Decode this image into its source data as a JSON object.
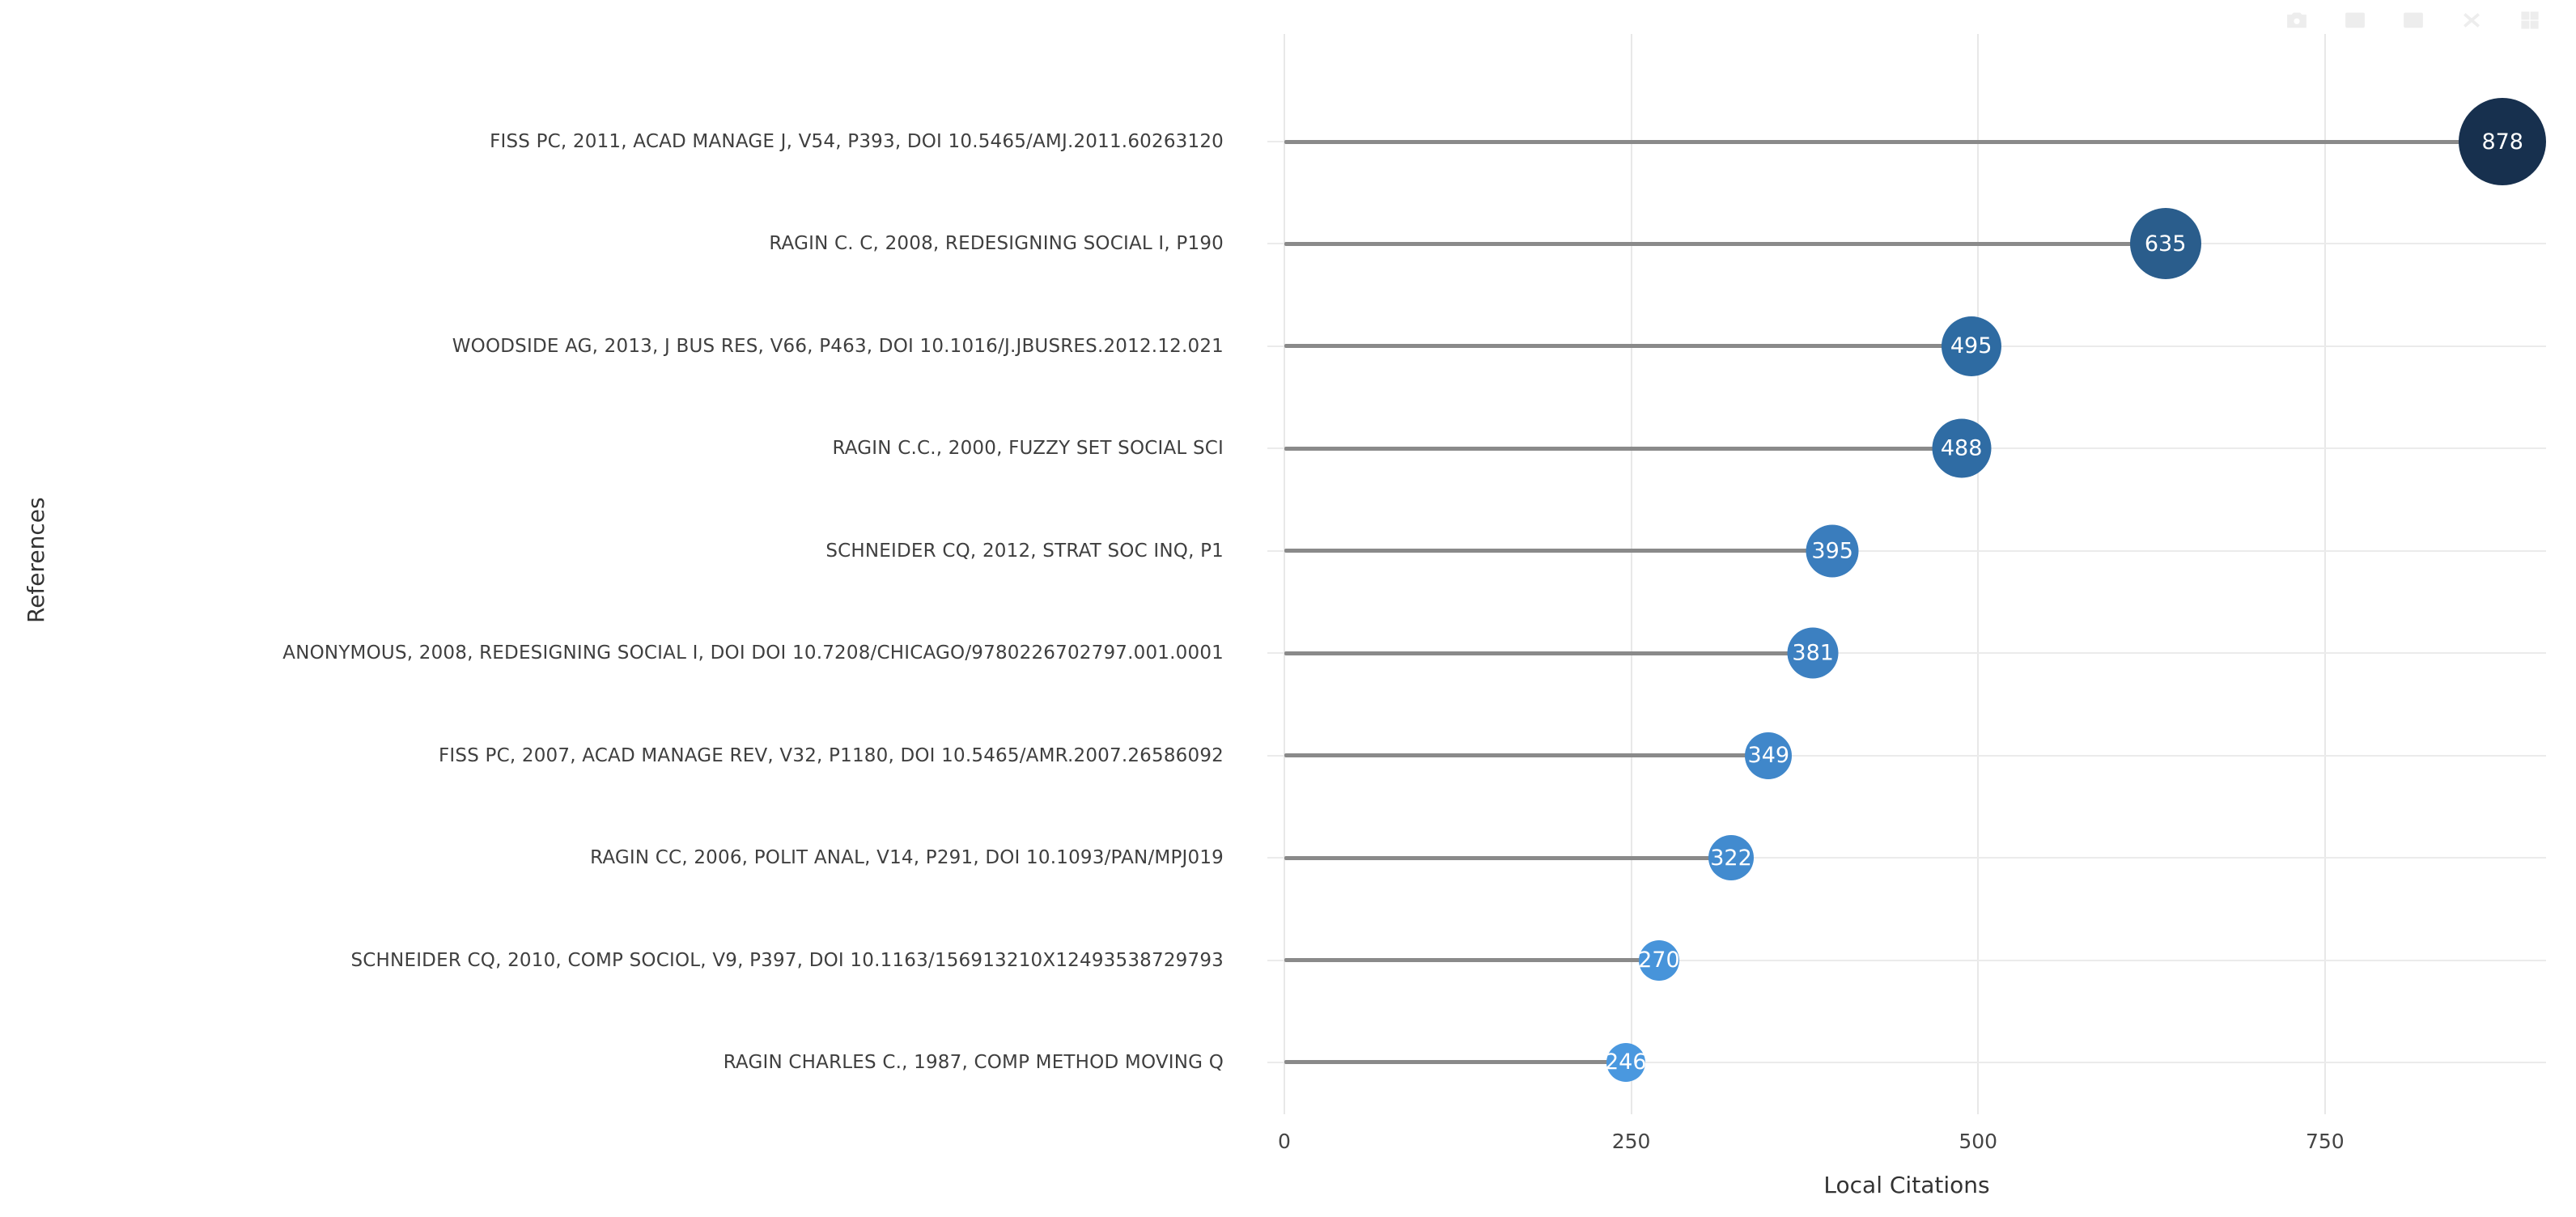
{
  "chart_data": {
    "type": "lollipop",
    "orientation": "horizontal",
    "xlabel": "Local Citations",
    "ylabel": "References",
    "x_ticks": [
      "0",
      "250",
      "500",
      "750"
    ],
    "x_tick_values": [
      0,
      250,
      500,
      750
    ],
    "xlim": [
      0,
      910
    ],
    "grid": true,
    "legend": "none",
    "background": "#ffffff",
    "stem_color": "#8a8a8a",
    "gridline_color": "#ebebeb",
    "categories": [
      "FISS PC, 2011, ACAD MANAGE J, V54, P393, DOI 10.5465/AMJ.2011.60263120",
      "RAGIN C. C, 2008, REDESIGNING SOCIAL I, P190",
      "WOODSIDE AG, 2013, J BUS RES, V66, P463, DOI 10.1016/J.JBUSRES.2012.12.021",
      "RAGIN C.C., 2000, FUZZY SET SOCIAL SCI",
      "SCHNEIDER CQ, 2012, STRAT SOC INQ, P1",
      "ANONYMOUS, 2008, REDESIGNING SOCIAL I, DOI DOI 10.7208/CHICAGO/9780226702797.001.0001",
      "FISS PC, 2007, ACAD MANAGE REV, V32, P1180, DOI 10.5465/AMR.2007.26586092",
      "RAGIN CC, 2006, POLIT ANAL, V14, P291, DOI 10.1093/PAN/MPJ019",
      "SCHNEIDER CQ, 2010, COMP SOCIOL, V9, P397, DOI 10.1163/156913210X12493538729793",
      "RAGIN CHARLES C., 1987, COMP METHOD MOVING Q"
    ],
    "values": [
      878,
      635,
      495,
      488,
      395,
      381,
      349,
      322,
      270,
      246
    ],
    "items": [
      {
        "label": "FISS PC, 2011, ACAD MANAGE J, V54, P393, DOI 10.5465/AMJ.2011.60263120",
        "value": 878,
        "color": "#17304e",
        "diameter": 108
      },
      {
        "label": "RAGIN C. C, 2008, REDESIGNING SOCIAL I, P190",
        "value": 635,
        "color": "#2a5d8c",
        "diameter": 88
      },
      {
        "label": "WOODSIDE AG, 2013, J BUS RES, V66, P463, DOI 10.1016/J.JBUSRES.2012.12.021",
        "value": 495,
        "color": "#2e6ba2",
        "diameter": 74
      },
      {
        "label": "RAGIN C.C., 2000, FUZZY SET SOCIAL SCI",
        "value": 488,
        "color": "#2f6ca4",
        "diameter": 73
      },
      {
        "label": "SCHNEIDER CQ, 2012, STRAT SOC INQ, P1",
        "value": 395,
        "color": "#3a7dbd",
        "diameter": 65
      },
      {
        "label": "ANONYMOUS, 2008, REDESIGNING SOCIAL I, DOI DOI 10.7208/CHICAGO/9780226702797.001.0001",
        "value": 381,
        "color": "#3c80c1",
        "diameter": 63
      },
      {
        "label": "FISS PC, 2007, ACAD MANAGE REV, V32, P1180, DOI 10.5465/AMR.2007.26586092",
        "value": 349,
        "color": "#4087ca",
        "diameter": 58
      },
      {
        "label": "RAGIN CC, 2006, POLIT ANAL, V14, P291, DOI 10.1093/PAN/MPJ019",
        "value": 322,
        "color": "#428bcf",
        "diameter": 56
      },
      {
        "label": "SCHNEIDER CQ, 2010, COMP SOCIOL, V9, P397, DOI 10.1163/156913210X12493538729793",
        "value": 270,
        "color": "#4794da",
        "diameter": 50
      },
      {
        "label": "RAGIN CHARLES C., 1987, COMP METHOD MOVING Q",
        "value": 246,
        "color": "#4a98df",
        "diameter": 48
      }
    ]
  },
  "modebar": {
    "icons": [
      {
        "name": "camera-icon"
      },
      {
        "name": "zoom-box-icon"
      },
      {
        "name": "pan-icon"
      },
      {
        "name": "zoom-reset-icon"
      },
      {
        "name": "axes-grid-icon"
      }
    ]
  }
}
